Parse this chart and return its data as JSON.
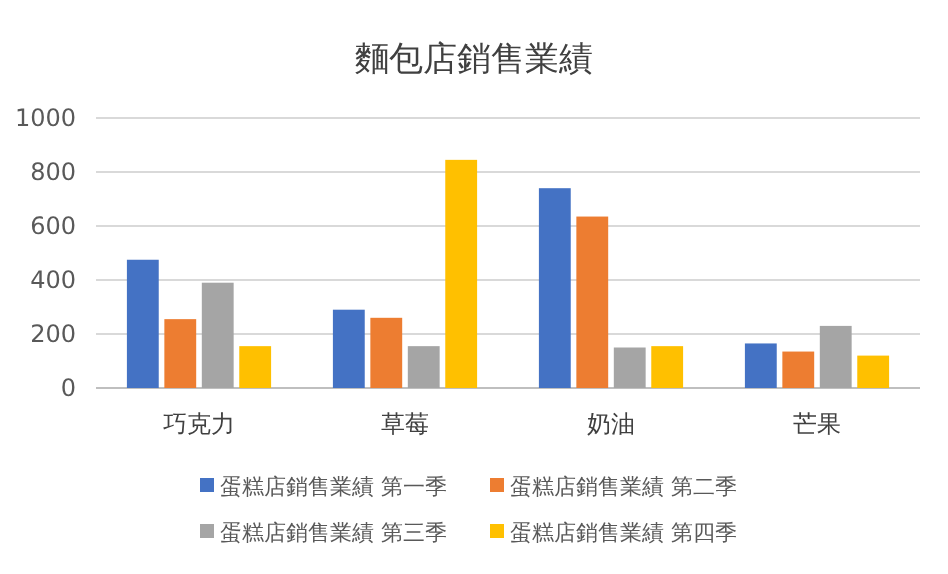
{
  "chart_data": {
    "type": "bar",
    "title": "麵包店銷售業績",
    "categories": [
      "巧克力",
      "草莓",
      "奶油",
      "芒果"
    ],
    "series": [
      {
        "name": "蛋糕店銷售業績 第一季",
        "color": "#4472c4",
        "values": [
          475,
          290,
          740,
          165
        ]
      },
      {
        "name": "蛋糕店銷售業績 第二季",
        "color": "#ed7d31",
        "values": [
          255,
          260,
          635,
          135
        ]
      },
      {
        "name": "蛋糕店銷售業績 第三季",
        "color": "#a5a5a5",
        "values": [
          390,
          155,
          150,
          230
        ]
      },
      {
        "name": "蛋糕店銷售業績 第四季",
        "color": "#ffc000",
        "values": [
          155,
          845,
          155,
          120
        ]
      }
    ],
    "ylim": [
      0,
      1000
    ],
    "yticks": [
      0,
      200,
      400,
      600,
      800,
      1000
    ],
    "grid": "y",
    "legend": "bottom"
  }
}
